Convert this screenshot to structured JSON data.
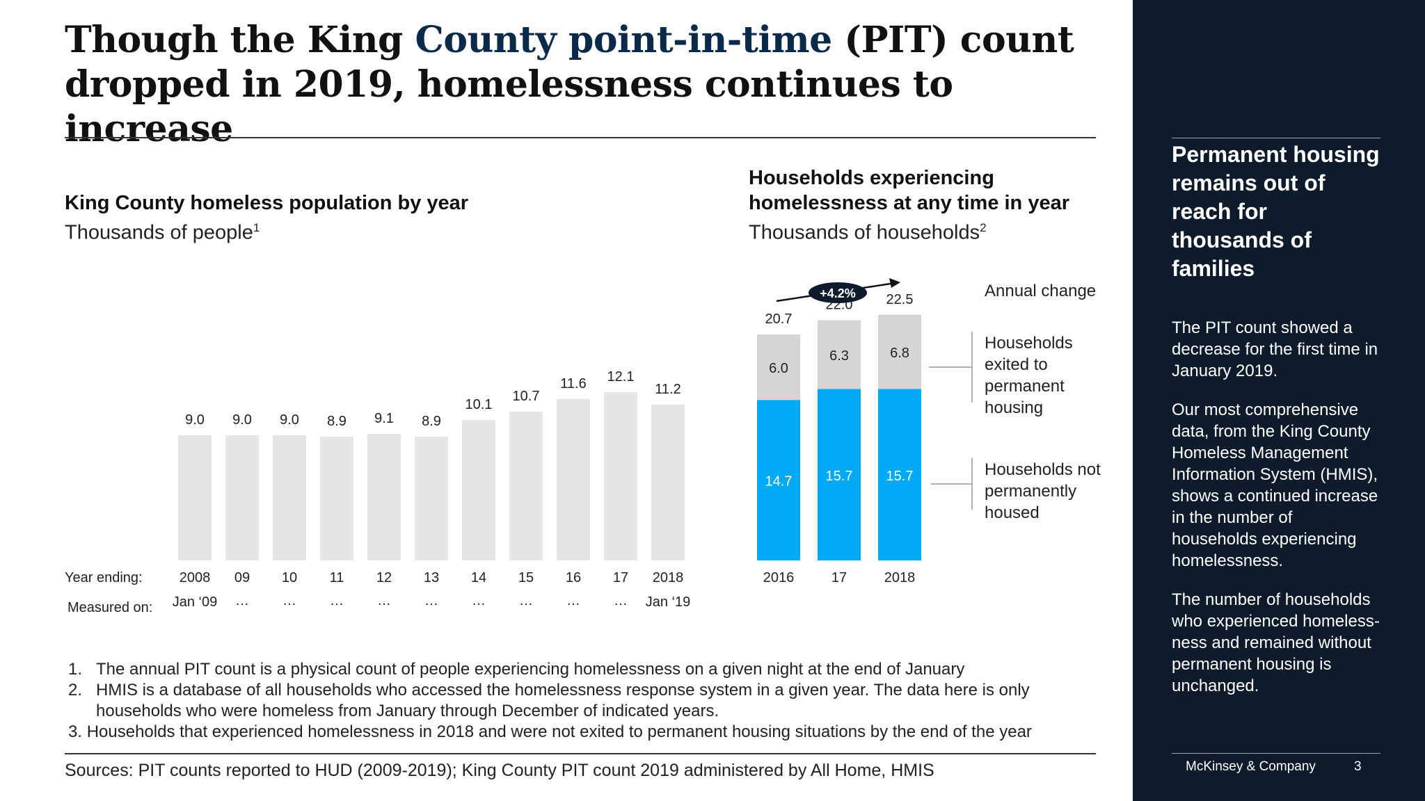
{
  "title": {
    "part1": "Though the King ",
    "highlight": "County point-in-time",
    "part2": " (PIT) count",
    "line2": "dropped in 2019, homelessness continues to increase"
  },
  "left_chart": {
    "title": "King County homeless population by year",
    "subtitle": "Thousands of people",
    "subtitle_sup": "1",
    "row1_label": "Year ending:",
    "row2_label": "Measured on:"
  },
  "right_chart": {
    "title_line1": "Households experiencing",
    "title_line2": "homelessness at any time in year",
    "subtitle": "Thousands of households",
    "subtitle_sup": "2",
    "badge": "+4.2%",
    "annual_change_label": "Annual change",
    "legend_exited": [
      "Households",
      "exited to",
      "permanent",
      "housing"
    ],
    "legend_not": [
      "Households not",
      "permanently",
      "housed"
    ]
  },
  "chart_data": [
    {
      "type": "bar",
      "title": "King County homeless population by year",
      "ylabel": "Thousands of people",
      "categories": [
        "2008",
        "09",
        "10",
        "11",
        "12",
        "13",
        "14",
        "15",
        "16",
        "17",
        "2018"
      ],
      "measured_on": [
        "Jan ‘09",
        "…",
        "…",
        "…",
        "…",
        "…",
        "…",
        "…",
        "…",
        "…",
        "Jan ‘19"
      ],
      "values": [
        9.0,
        9.0,
        9.0,
        8.9,
        9.1,
        8.9,
        10.1,
        10.7,
        11.6,
        12.1,
        11.2
      ],
      "labels": [
        "9.0",
        "9.0",
        "9.0",
        "8.9",
        "9.1",
        "8.9",
        "10.1",
        "10.7",
        "11.6",
        "12.1",
        "11.2"
      ],
      "color": "#e6e5e8"
    },
    {
      "type": "bar",
      "stacked": true,
      "title": "Households experiencing homelessness at any time in year",
      "ylabel": "Thousands of households",
      "categories": [
        "2016",
        "17",
        "2018"
      ],
      "totals": [
        20.7,
        22.0,
        22.5
      ],
      "total_labels": [
        "20.7",
        "22.0",
        "22.5"
      ],
      "series": [
        {
          "name": "Households not permanently housed",
          "values": [
            14.7,
            15.7,
            15.7
          ],
          "labels": [
            "14.7",
            "15.7",
            "15.7"
          ],
          "color": "#00a9f4"
        },
        {
          "name": "Households exited to permanent housing",
          "values": [
            6.0,
            6.3,
            6.8
          ],
          "labels": [
            "6.0",
            "6.3",
            "6.8"
          ],
          "color": "#d5d5d8"
        }
      ],
      "annual_change": "+4.2%"
    }
  ],
  "footnotes": [
    {
      "num": "1.",
      "text": "The annual PIT count is a physical count of people experiencing homelessness on a given night at the end of January"
    },
    {
      "num": "2.",
      "text": "HMIS is a database of all households who accessed the homelessness response system in a given year. The data here is only households who were homeless from January through December of indicated years."
    },
    {
      "num": "3.",
      "text": "Households that experienced homelessness in 2018 and were not exited to permanent housing situations by the end of the year"
    }
  ],
  "sources": "Sources: PIT counts reported to HUD (2009-2019); King County PIT count 2019 administered by All Home, HMIS",
  "sidebar": {
    "heading": "Permanent housing remains out of reach for thousands of families",
    "paragraphs": [
      "The PIT count showed a decrease for the first time in January 2019.",
      "Our most comprehensive data, from the King County Homeless Management Information System (HMIS), shows a continued increase in the number of households experiencing homelessness.",
      "The number of households who experienced homeless-ness and remained without permanent housing is unchanged."
    ],
    "brand": "McKinsey & Company",
    "page": "3"
  }
}
